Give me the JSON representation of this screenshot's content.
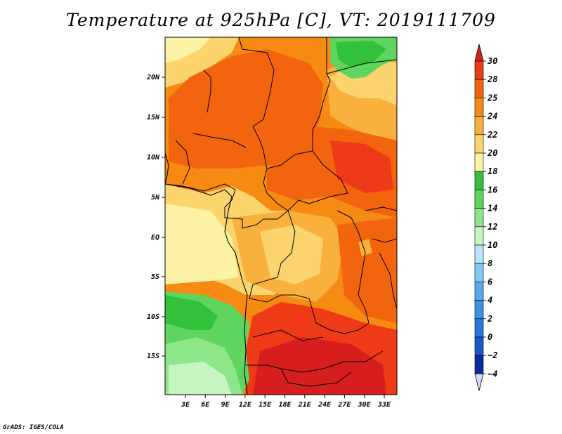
{
  "title": "Temperature at 925hPa [C], VT: 2019111709",
  "credit": "GrADS: IGES/COLA",
  "map": {
    "lat_ticks": [
      "20N",
      "15N",
      "10N",
      "5N",
      "EQ",
      "5S",
      "10S",
      "15S"
    ],
    "lon_ticks": [
      "3E",
      "6E",
      "9E",
      "12E",
      "15E",
      "18E",
      "21E",
      "24E",
      "27E",
      "30E",
      "33E"
    ]
  },
  "colorbar": {
    "labels": [
      "30",
      "28",
      "25",
      "24",
      "22",
      "20",
      "18",
      "16",
      "14",
      "12",
      "10",
      "8",
      "6",
      "4",
      "2",
      "0",
      "−2",
      "−4"
    ],
    "colors": {
      "above_30": "#d71e1e",
      "28_30": "#ee3a16",
      "25_28": "#f2640e",
      "24_25": "#f68a12",
      "22_24": "#f9b03c",
      "20_22": "#fbd46e",
      "18_20": "#fcf2a4",
      "16_18": "#33c13b",
      "14_16": "#5fd55f",
      "12_14": "#8ee68b",
      "10_12": "#c6f5c1",
      "8_10": "#b4e7fa",
      "6_8": "#82c8f2",
      "4_6": "#5aa8ec",
      "2_4": "#3f8fe6",
      "0_2": "#2a74dc",
      "m2_0": "#1a56cc",
      "m4_m2": "#0d2a9a",
      "below_m4": "#d6d9f5"
    }
  }
}
